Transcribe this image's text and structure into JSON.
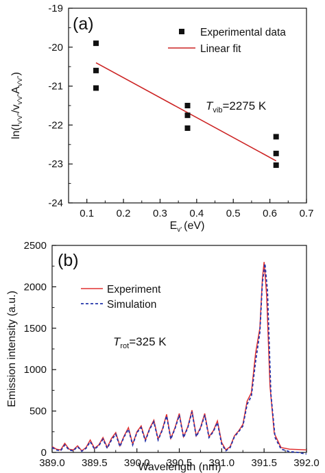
{
  "chart_data": [
    {
      "type": "scatter",
      "panel_label": "(a)",
      "xlabel": "E",
      "xlabel_sub": "v'",
      "xlabel_unit": "(eV)",
      "ylabel": "ln(I",
      "ylabel_sub": "v'v''",
      "ylabel_mid": "/v",
      "ylabel_sub2": "v'v''",
      "ylabel_mid2": "A",
      "ylabel_sub3": "v'v''",
      "ylabel_end": ")",
      "xlim": [
        0.05,
        0.7
      ],
      "ylim": [
        -24,
        -19
      ],
      "xticks": [
        "0.1",
        "0.2",
        "0.3",
        "0.4",
        "0.5",
        "0.6",
        "0.7"
      ],
      "yticks": [
        "-19",
        "-20",
        "-21",
        "-22",
        "-23",
        "-24"
      ],
      "annotation": {
        "italic": "T",
        "sub": "vib",
        "text": "=2275 K"
      },
      "legend": [
        "Experimental data",
        "Linear fit"
      ],
      "series": [
        {
          "name": "Experimental data",
          "color": "#111111",
          "points": [
            [
              0.125,
              -19.9
            ],
            [
              0.125,
              -20.6
            ],
            [
              0.125,
              -21.05
            ],
            [
              0.375,
              -21.5
            ],
            [
              0.375,
              -21.75
            ],
            [
              0.375,
              -22.08
            ],
            [
              0.617,
              -22.3
            ],
            [
              0.617,
              -22.73
            ],
            [
              0.617,
              -23.03
            ]
          ]
        },
        {
          "name": "Linear fit",
          "color": "#cc2222",
          "points": [
            [
              0.125,
              -20.4
            ],
            [
              0.617,
              -22.92
            ]
          ]
        }
      ]
    },
    {
      "type": "line",
      "panel_label": "(b)",
      "xlabel": "Wavelength (nm)",
      "ylabel": "Emission intensity (a.u.)",
      "xlim": [
        389.0,
        392.0
      ],
      "ylim": [
        0,
        2500
      ],
      "xticks": [
        "389.0",
        "389.5",
        "390.0",
        "390.5",
        "391.0",
        "391.5",
        "392.0"
      ],
      "yticks": [
        "0",
        "500",
        "1000",
        "1500",
        "2000",
        "2500"
      ],
      "annotation": {
        "italic": "T",
        "sub": "rot",
        "text": "=325 K"
      },
      "legend": [
        "Experiment",
        "Simulation"
      ],
      "series": [
        {
          "name": "Experiment",
          "color": "#e03030",
          "points": [
            [
              389.0,
              70
            ],
            [
              389.05,
              40
            ],
            [
              389.1,
              30
            ],
            [
              389.15,
              110
            ],
            [
              389.2,
              40
            ],
            [
              389.25,
              30
            ],
            [
              389.3,
              80
            ],
            [
              389.35,
              20
            ],
            [
              389.4,
              60
            ],
            [
              389.45,
              150
            ],
            [
              389.5,
              50
            ],
            [
              389.55,
              90
            ],
            [
              389.6,
              180
            ],
            [
              389.65,
              60
            ],
            [
              389.7,
              170
            ],
            [
              389.75,
              240
            ],
            [
              389.8,
              80
            ],
            [
              389.85,
              200
            ],
            [
              389.9,
              300
            ],
            [
              389.95,
              100
            ],
            [
              390.0,
              250
            ],
            [
              390.05,
              320
            ],
            [
              390.1,
              150
            ],
            [
              390.15,
              290
            ],
            [
              390.2,
              390
            ],
            [
              390.25,
              160
            ],
            [
              390.3,
              280
            ],
            [
              390.35,
              460
            ],
            [
              390.4,
              170
            ],
            [
              390.45,
              300
            ],
            [
              390.5,
              470
            ],
            [
              390.55,
              190
            ],
            [
              390.6,
              310
            ],
            [
              390.65,
              510
            ],
            [
              390.7,
              200
            ],
            [
              390.75,
              300
            ],
            [
              390.8,
              470
            ],
            [
              390.85,
              190
            ],
            [
              390.9,
              260
            ],
            [
              390.95,
              380
            ],
            [
              391.0,
              120
            ],
            [
              391.05,
              30
            ],
            [
              391.1,
              70
            ],
            [
              391.15,
              200
            ],
            [
              391.2,
              260
            ],
            [
              391.25,
              340
            ],
            [
              391.3,
              620
            ],
            [
              391.35,
              720
            ],
            [
              391.4,
              1200
            ],
            [
              391.45,
              1500
            ],
            [
              391.48,
              2100
            ],
            [
              391.5,
              2300
            ],
            [
              391.53,
              1900
            ],
            [
              391.57,
              800
            ],
            [
              391.62,
              230
            ],
            [
              391.7,
              60
            ],
            [
              391.8,
              40
            ],
            [
              391.9,
              35
            ],
            [
              392.0,
              30
            ]
          ]
        },
        {
          "name": "Simulation",
          "color": "#2233aa",
          "points": [
            [
              389.0,
              60
            ],
            [
              389.05,
              30
            ],
            [
              389.1,
              20
            ],
            [
              389.15,
              90
            ],
            [
              389.2,
              30
            ],
            [
              389.25,
              20
            ],
            [
              389.3,
              70
            ],
            [
              389.35,
              15
            ],
            [
              389.4,
              50
            ],
            [
              389.45,
              130
            ],
            [
              389.5,
              40
            ],
            [
              389.55,
              80
            ],
            [
              389.6,
              160
            ],
            [
              389.65,
              50
            ],
            [
              389.7,
              150
            ],
            [
              389.75,
              220
            ],
            [
              389.8,
              70
            ],
            [
              389.85,
              190
            ],
            [
              389.9,
              280
            ],
            [
              389.95,
              90
            ],
            [
              390.0,
              240
            ],
            [
              390.05,
              300
            ],
            [
              390.1,
              140
            ],
            [
              390.15,
              280
            ],
            [
              390.2,
              370
            ],
            [
              390.25,
              150
            ],
            [
              390.3,
              270
            ],
            [
              390.35,
              440
            ],
            [
              390.4,
              160
            ],
            [
              390.45,
              290
            ],
            [
              390.5,
              450
            ],
            [
              390.55,
              180
            ],
            [
              390.6,
              300
            ],
            [
              390.65,
              490
            ],
            [
              390.7,
              190
            ],
            [
              390.75,
              290
            ],
            [
              390.8,
              450
            ],
            [
              390.85,
              180
            ],
            [
              390.9,
              250
            ],
            [
              390.95,
              360
            ],
            [
              391.0,
              100
            ],
            [
              391.05,
              20
            ],
            [
              391.1,
              60
            ],
            [
              391.15,
              190
            ],
            [
              391.2,
              250
            ],
            [
              391.25,
              320
            ],
            [
              391.3,
              580
            ],
            [
              391.35,
              680
            ],
            [
              391.4,
              1100
            ],
            [
              391.45,
              1450
            ],
            [
              391.48,
              2050
            ],
            [
              391.51,
              2280
            ],
            [
              391.54,
              1950
            ],
            [
              391.58,
              700
            ],
            [
              391.63,
              180
            ],
            [
              391.7,
              40
            ],
            [
              391.8,
              10
            ],
            [
              391.9,
              0
            ],
            [
              392.0,
              -20
            ]
          ]
        }
      ]
    }
  ]
}
